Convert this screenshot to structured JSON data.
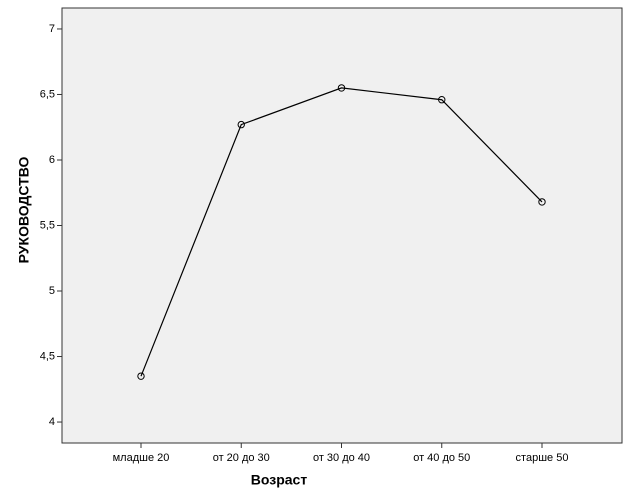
{
  "chart_data": {
    "type": "line",
    "categories": [
      "младше 20",
      "от 20 до 30",
      "от 30 до 40",
      "от 40 до 50",
      "старше 50"
    ],
    "values": [
      4.35,
      6.27,
      6.55,
      6.46,
      5.68
    ],
    "x_label": "Возраст",
    "y_label": "РУКОВОДСТВО",
    "color": "#000000",
    "ylim": [
      3.84,
      7.16
    ],
    "yticks": [
      4,
      {
        "value": 4.5,
        "label": "4,5"
      },
      5,
      {
        "value": 5.5,
        "label": "5,5"
      },
      6,
      {
        "value": 6.5,
        "label": "6,5"
      },
      7
    ]
  }
}
